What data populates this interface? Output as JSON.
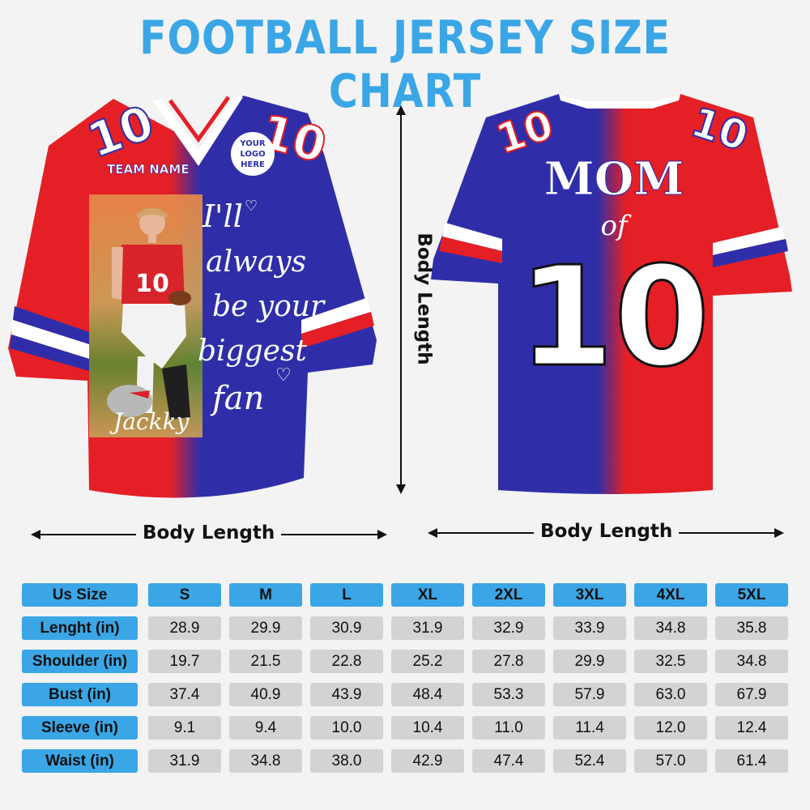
{
  "title": "FOOTBALL JERSEY SIZE CHART",
  "front_jersey": {
    "team_name": "TEAM NAME",
    "logo_text": [
      "YOUR",
      "LOGO",
      "HERE"
    ],
    "number": "10",
    "quote_lines": [
      "I'll",
      "always",
      "be your",
      "biggest",
      "fan"
    ],
    "signature": "Jackky",
    "colors": {
      "red": "#e41f26",
      "blue": "#2f2ea8",
      "white": "#ffffff"
    }
  },
  "back_jersey": {
    "line1": "MOM",
    "line2": "of",
    "number": "10"
  },
  "dimension_labels": {
    "front_bottom": "Body Length",
    "front_side": "Body Length",
    "back_bottom": "Body Length"
  },
  "size_table": {
    "header_label": "Us Size",
    "sizes": [
      "S",
      "M",
      "L",
      "XL",
      "2XL",
      "3XL",
      "4XL",
      "5XL"
    ],
    "rows": [
      {
        "label": "Lenght (in)",
        "values": [
          "28.9",
          "29.9",
          "30.9",
          "31.9",
          "32.9",
          "33.9",
          "34.8",
          "35.8"
        ]
      },
      {
        "label": "Shoulder (in)",
        "values": [
          "19.7",
          "21.5",
          "22.8",
          "25.2",
          "27.8",
          "29.9",
          "32.5",
          "34.8"
        ]
      },
      {
        "label": "Bust (in)",
        "values": [
          "37.4",
          "40.9",
          "43.9",
          "48.4",
          "53.3",
          "57.9",
          "63.0",
          "67.9"
        ]
      },
      {
        "label": "Sleeve (in)",
        "values": [
          "9.1",
          "9.4",
          "10.0",
          "10.4",
          "11.0",
          "11.4",
          "12.0",
          "12.4"
        ]
      },
      {
        "label": "Waist (in)",
        "values": [
          "31.9",
          "34.8",
          "38.0",
          "42.9",
          "47.4",
          "52.4",
          "57.0",
          "61.4"
        ]
      }
    ],
    "colors": {
      "header": "#3aa6e6",
      "value": "#d3d3d3"
    }
  }
}
